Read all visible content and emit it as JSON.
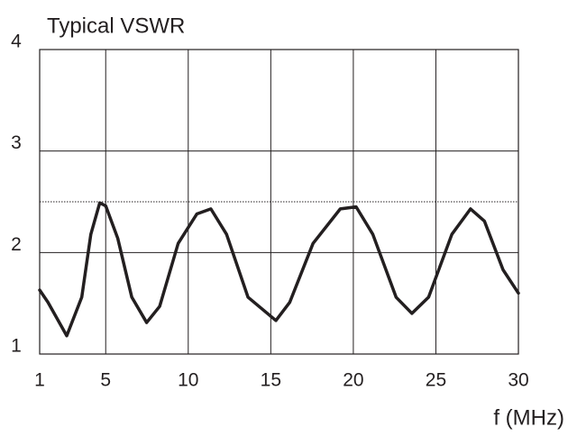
{
  "chart_data": {
    "type": "line",
    "title": "Typical VSWR",
    "x_label": "f (MHz)",
    "x": [
      1,
      1.5,
      2.64,
      3.55,
      4.1,
      4.64,
      5,
      5.73,
      6.58,
      7.48,
      8.27,
      9.39,
      10.52,
      11.37,
      12.32,
      13.62,
      15.31,
      16.15,
      17.56,
      19.21,
      20.17,
      21.18,
      22.59,
      23.55,
      24.56,
      25.97,
      27.1,
      27.94,
      29.07,
      30
    ],
    "series": [
      {
        "color": "#231f20",
        "values": [
          1.63,
          1.51,
          1.18,
          1.56,
          2.18,
          2.49,
          2.46,
          2.14,
          1.56,
          1.31,
          1.47,
          2.09,
          2.38,
          2.43,
          2.18,
          1.56,
          1.33,
          1.51,
          2.09,
          2.43,
          2.45,
          2.18,
          1.56,
          1.4,
          1.56,
          2.18,
          2.43,
          2.31,
          1.83,
          1.6
        ]
      }
    ],
    "xlim": [
      1,
      30
    ],
    "xticks": [
      1,
      5,
      10,
      15,
      20,
      25,
      30
    ],
    "ylim": [
      1,
      4
    ],
    "yticks": [
      1,
      2,
      3,
      4
    ],
    "grid": true,
    "reference_line": 2.5
  }
}
